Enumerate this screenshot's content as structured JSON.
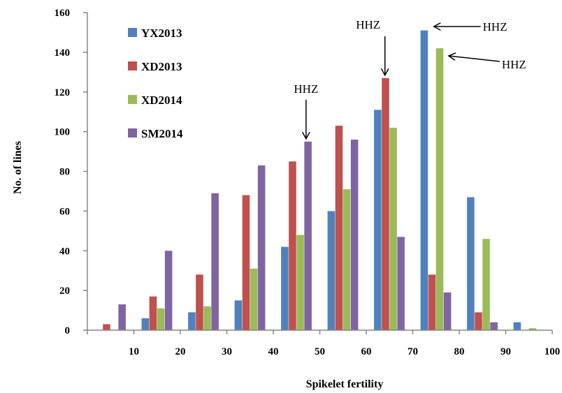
{
  "chart_data": {
    "type": "bar",
    "xlabel": "Spikelet fertility",
    "ylabel": "No. of lines",
    "ylim": [
      0,
      160
    ],
    "yticks": [
      0,
      20,
      40,
      60,
      80,
      100,
      120,
      140,
      160
    ],
    "xticks": [
      10,
      20,
      30,
      40,
      50,
      60,
      70,
      80,
      90,
      100
    ],
    "bin_width": 10,
    "bins": [
      0,
      10,
      20,
      30,
      40,
      50,
      60,
      70,
      80,
      90
    ],
    "grid": false,
    "legend_position": "top-left",
    "series": [
      {
        "name": "YX2013",
        "color": "#4F81BD",
        "values": [
          0,
          6,
          9,
          15,
          42,
          60,
          111,
          151,
          67,
          4
        ]
      },
      {
        "name": "XD2013",
        "color": "#C0504D",
        "values": [
          3,
          17,
          28,
          68,
          85,
          103,
          127,
          28,
          9,
          0
        ]
      },
      {
        "name": "XD2014",
        "color": "#9BBB59",
        "values": [
          0,
          11,
          12,
          31,
          48,
          71,
          102,
          142,
          46,
          1
        ]
      },
      {
        "name": "SM2014",
        "color": "#8064A2",
        "values": [
          13,
          40,
          69,
          83,
          95,
          96,
          47,
          19,
          4,
          0
        ]
      }
    ],
    "annotations": [
      {
        "text": "HHZ",
        "series": "SM2014",
        "bin": 40,
        "value": 95
      },
      {
        "text": "HHZ",
        "series": "XD2013",
        "bin": 60,
        "value": 127
      },
      {
        "text": "HHZ",
        "series": "YX2013",
        "bin": 70,
        "value": 151
      },
      {
        "text": "HHZ",
        "series": "XD2014",
        "bin": 70,
        "value": 142
      }
    ]
  }
}
